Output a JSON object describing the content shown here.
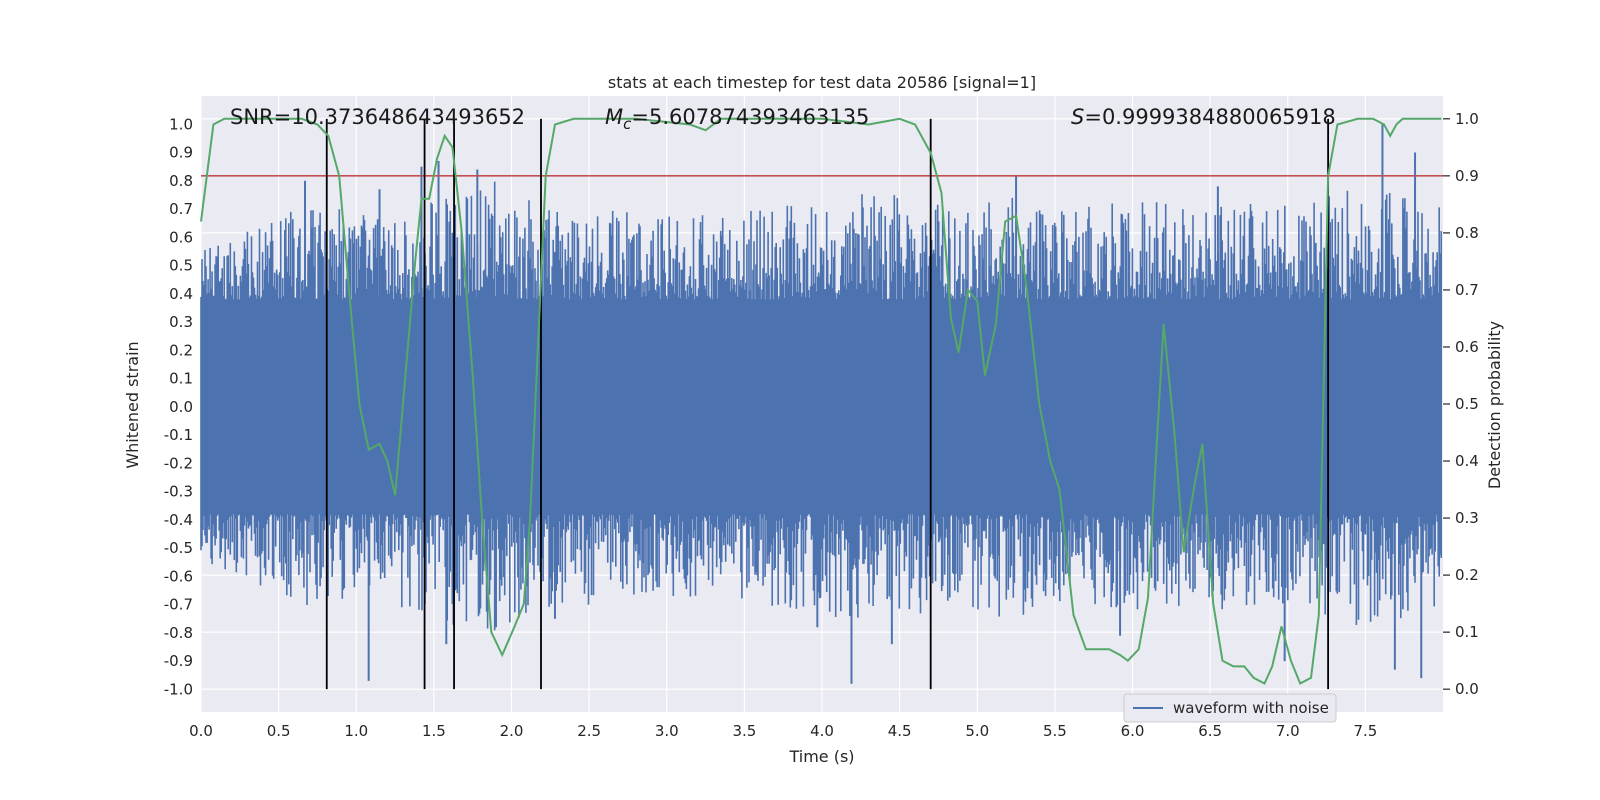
{
  "chart_data": {
    "type": "line",
    "title": "stats at each timestep for test data 20586 [signal=1]",
    "xlabel": "Time (s)",
    "ylabel": "Whitened strain",
    "ylabel_right": "Detection probability",
    "xlim": [
      0.0,
      8.0
    ],
    "ylim": [
      -1.08,
      1.1
    ],
    "ylim_right": [
      -0.04,
      1.04
    ],
    "x_ticks": [
      "0.0",
      "0.5",
      "1.0",
      "1.5",
      "2.0",
      "2.5",
      "3.0",
      "3.5",
      "4.0",
      "4.5",
      "5.0",
      "5.5",
      "6.0",
      "6.5",
      "7.0",
      "7.5"
    ],
    "y_ticks": [
      "1.0",
      "0.9",
      "0.8",
      "0.7",
      "0.6",
      "0.5",
      "0.4",
      "0.3",
      "0.2",
      "0.1",
      "0.0",
      "-0.1",
      "-0.2",
      "-0.3",
      "-0.4",
      "-0.5",
      "-0.6",
      "-0.7",
      "-0.8",
      "-0.9",
      "-1.0"
    ],
    "y_ticks_right": [
      "1.0",
      "0.9",
      "0.8",
      "0.7",
      "0.6",
      "0.5",
      "0.4",
      "0.3",
      "0.2",
      "0.1",
      "0.0"
    ],
    "grid": true,
    "legend_position": "lower-right",
    "annotations": {
      "snr": "SNR=10.373648643493652",
      "mc_symbol": "M",
      "mc_sub": "c",
      "mc_value": "=5.607874393463135",
      "s_symbol": "S",
      "s_value": "=0.9999384880065918"
    },
    "threshold": {
      "value": 0.9,
      "axis": "right",
      "color": "#c44e52"
    },
    "event_lines_x": [
      0.81,
      1.44,
      1.63,
      2.19,
      4.7,
      7.26
    ],
    "series": [
      {
        "name": "waveform with noise",
        "color": "#4c72b0",
        "kind": "noise-bars",
        "core_amplitude": 0.38,
        "envelope": [
          [
            0.0,
            0.55
          ],
          [
            0.3,
            0.62
          ],
          [
            0.6,
            0.7
          ],
          [
            0.75,
            0.72
          ],
          [
            1.1,
            0.68
          ],
          [
            1.5,
            0.75
          ],
          [
            1.85,
            0.82
          ],
          [
            2.2,
            0.72
          ],
          [
            2.6,
            0.7
          ],
          [
            3.0,
            0.68
          ],
          [
            3.5,
            0.7
          ],
          [
            4.0,
            0.74
          ],
          [
            4.4,
            0.76
          ],
          [
            4.8,
            0.72
          ],
          [
            5.2,
            0.75
          ],
          [
            5.6,
            0.7
          ],
          [
            6.0,
            0.73
          ],
          [
            6.5,
            0.72
          ],
          [
            7.0,
            0.72
          ],
          [
            7.5,
            0.78
          ],
          [
            8.0,
            0.72
          ]
        ],
        "spikes": [
          [
            0.67,
            0.8
          ],
          [
            1.08,
            -0.97
          ],
          [
            1.15,
            0.77
          ],
          [
            1.42,
            0.85
          ],
          [
            1.53,
            0.87
          ],
          [
            1.78,
            0.84
          ],
          [
            1.58,
            -0.84
          ],
          [
            1.9,
            -0.78
          ],
          [
            2.28,
            -0.75
          ],
          [
            3.97,
            -0.78
          ],
          [
            4.19,
            -0.98
          ],
          [
            4.45,
            -0.84
          ],
          [
            5.25,
            0.82
          ],
          [
            5.92,
            -0.81
          ],
          [
            6.55,
            0.78
          ],
          [
            6.98,
            -0.9
          ],
          [
            7.18,
            0.58
          ],
          [
            7.32,
            0.54
          ],
          [
            7.61,
            1.0
          ],
          [
            7.69,
            -0.93
          ],
          [
            7.82,
            0.9
          ],
          [
            7.86,
            -0.96
          ]
        ]
      },
      {
        "name": "",
        "color": "#55a868",
        "axis": "right",
        "kind": "line",
        "points": [
          [
            0.0,
            0.82
          ],
          [
            0.08,
            0.99
          ],
          [
            0.15,
            1.0
          ],
          [
            0.3,
            1.0
          ],
          [
            0.5,
            1.0
          ],
          [
            0.65,
            1.0
          ],
          [
            0.75,
            0.99
          ],
          [
            0.82,
            0.97
          ],
          [
            0.89,
            0.9
          ],
          [
            0.96,
            0.68
          ],
          [
            1.02,
            0.5
          ],
          [
            1.08,
            0.42
          ],
          [
            1.15,
            0.43
          ],
          [
            1.2,
            0.4
          ],
          [
            1.25,
            0.34
          ],
          [
            1.32,
            0.56
          ],
          [
            1.38,
            0.75
          ],
          [
            1.42,
            0.86
          ],
          [
            1.47,
            0.86
          ],
          [
            1.52,
            0.93
          ],
          [
            1.57,
            0.97
          ],
          [
            1.62,
            0.95
          ],
          [
            1.68,
            0.8
          ],
          [
            1.75,
            0.55
          ],
          [
            1.81,
            0.3
          ],
          [
            1.87,
            0.1
          ],
          [
            1.94,
            0.06
          ],
          [
            2.02,
            0.11
          ],
          [
            2.08,
            0.15
          ],
          [
            2.12,
            0.3
          ],
          [
            2.17,
            0.6
          ],
          [
            2.22,
            0.9
          ],
          [
            2.28,
            0.99
          ],
          [
            2.4,
            1.0
          ],
          [
            2.8,
            1.0
          ],
          [
            3.15,
            0.99
          ],
          [
            3.25,
            0.98
          ],
          [
            3.35,
            1.0
          ],
          [
            4.0,
            1.0
          ],
          [
            4.3,
            0.99
          ],
          [
            4.5,
            1.0
          ],
          [
            4.6,
            0.99
          ],
          [
            4.7,
            0.94
          ],
          [
            4.77,
            0.87
          ],
          [
            4.83,
            0.65
          ],
          [
            4.88,
            0.59
          ],
          [
            4.94,
            0.7
          ],
          [
            5.0,
            0.68
          ],
          [
            5.05,
            0.55
          ],
          [
            5.12,
            0.64
          ],
          [
            5.18,
            0.82
          ],
          [
            5.25,
            0.83
          ],
          [
            5.32,
            0.7
          ],
          [
            5.4,
            0.5
          ],
          [
            5.47,
            0.4
          ],
          [
            5.53,
            0.35
          ],
          [
            5.62,
            0.13
          ],
          [
            5.7,
            0.07
          ],
          [
            5.78,
            0.07
          ],
          [
            5.85,
            0.07
          ],
          [
            5.92,
            0.06
          ],
          [
            5.97,
            0.05
          ],
          [
            6.04,
            0.07
          ],
          [
            6.1,
            0.16
          ],
          [
            6.2,
            0.64
          ],
          [
            6.27,
            0.45
          ],
          [
            6.33,
            0.24
          ],
          [
            6.4,
            0.36
          ],
          [
            6.45,
            0.43
          ],
          [
            6.52,
            0.15
          ],
          [
            6.58,
            0.05
          ],
          [
            6.65,
            0.04
          ],
          [
            6.72,
            0.04
          ],
          [
            6.78,
            0.02
          ],
          [
            6.85,
            0.01
          ],
          [
            6.9,
            0.04
          ],
          [
            6.96,
            0.11
          ],
          [
            7.02,
            0.05
          ],
          [
            7.08,
            0.01
          ],
          [
            7.15,
            0.02
          ],
          [
            7.2,
            0.13
          ],
          [
            7.26,
            0.9
          ],
          [
            7.32,
            0.99
          ],
          [
            7.45,
            1.0
          ],
          [
            7.55,
            1.0
          ],
          [
            7.62,
            0.99
          ],
          [
            7.66,
            0.97
          ],
          [
            7.7,
            0.99
          ],
          [
            7.74,
            1.0
          ],
          [
            7.99,
            1.0
          ]
        ]
      }
    ]
  }
}
